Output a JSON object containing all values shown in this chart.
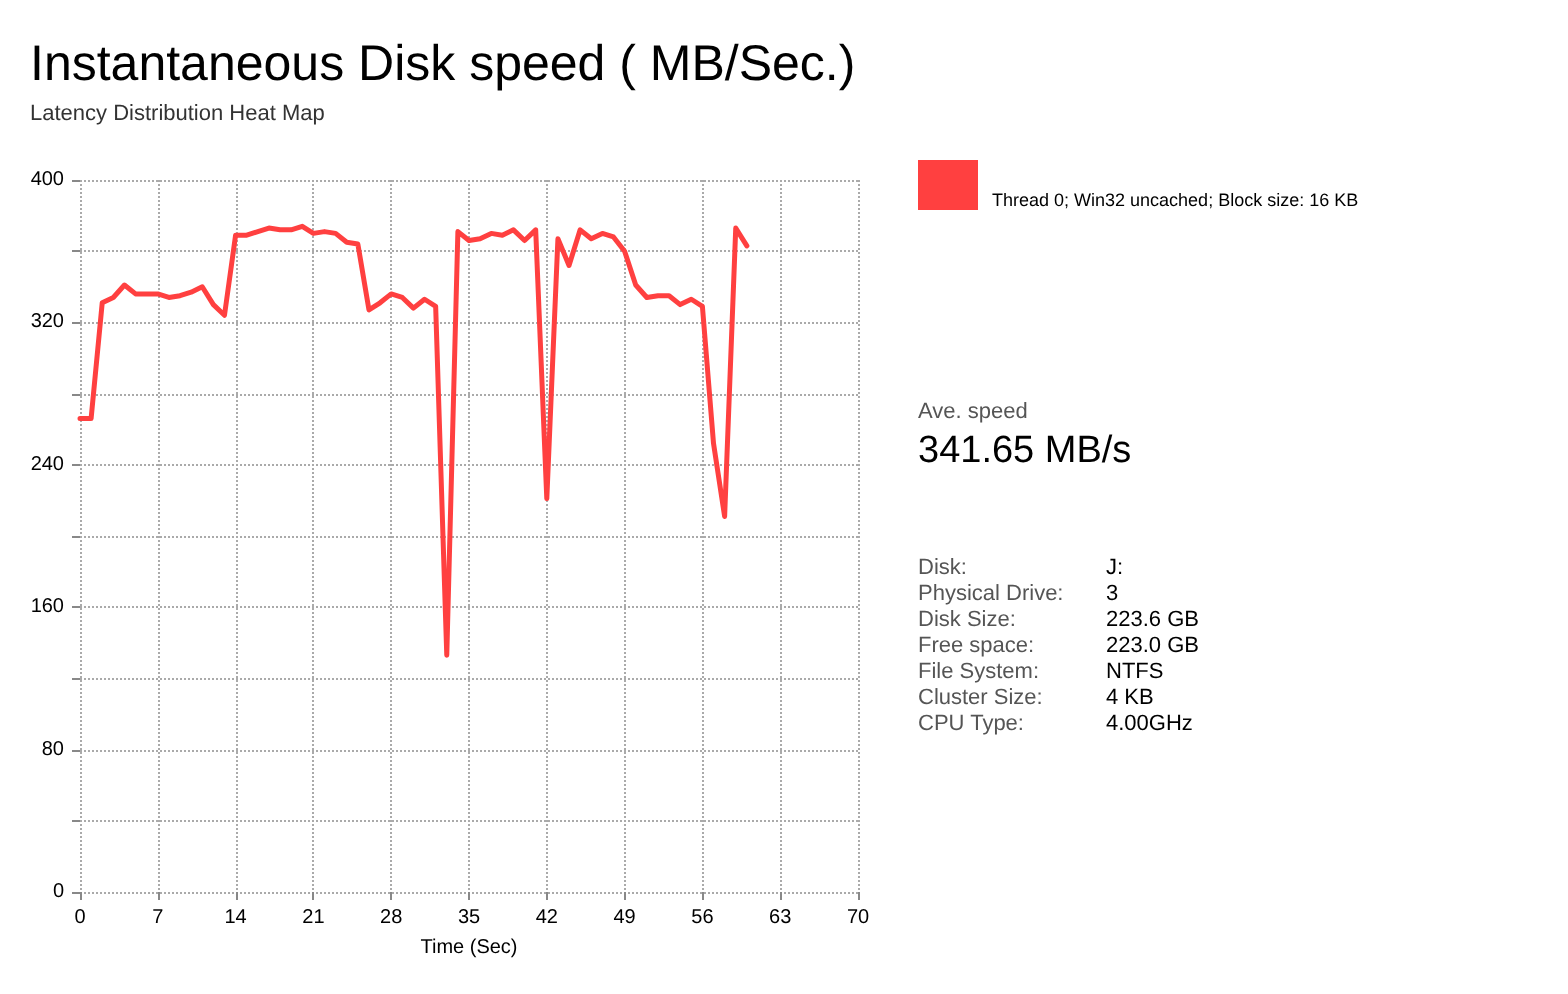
{
  "chart_data": {
    "type": "line",
    "title": "Instantaneous Disk speed ( MB/Sec.)",
    "subtitle": "Latency Distribution Heat Map",
    "xlabel": "Time (Sec)",
    "x": [
      0,
      1,
      2,
      3,
      4,
      5,
      6,
      7,
      8,
      9,
      10,
      11,
      12,
      13,
      14,
      15,
      16,
      17,
      18,
      19,
      20,
      21,
      22,
      23,
      24,
      25,
      26,
      27,
      28,
      29,
      30,
      31,
      32,
      33,
      34,
      35,
      36,
      37,
      38,
      39,
      40,
      41,
      42,
      43,
      44,
      45,
      46,
      47,
      48,
      49,
      50,
      51,
      52,
      53,
      54,
      55,
      56,
      57,
      58,
      59,
      60
    ],
    "series": [
      {
        "color": "#ff4040",
        "values": [
          266,
          266,
          331,
          334,
          341,
          336,
          336,
          336,
          334,
          335,
          337,
          340,
          330,
          324,
          369,
          369,
          371,
          373,
          372,
          372,
          374,
          370,
          371,
          370,
          365,
          364,
          327,
          331,
          336,
          334,
          328,
          333,
          329,
          133,
          371,
          366,
          367,
          370,
          369,
          372,
          366,
          372,
          221,
          367,
          352,
          372,
          367,
          370,
          368,
          360,
          341,
          334,
          335,
          335,
          330,
          333,
          329,
          252,
          211,
          373,
          363
        ]
      }
    ],
    "xlim": [
      0,
      70
    ],
    "xticks": [
      0,
      7,
      14,
      21,
      28,
      35,
      42,
      49,
      56,
      63,
      70
    ],
    "ylim": [
      0,
      400
    ],
    "yticks": [
      0,
      {
        "value": 40,
        "label": null
      },
      80,
      {
        "value": 120,
        "label": null
      },
      160,
      {
        "value": 200,
        "label": null
      },
      240,
      {
        "value": 280,
        "label": null
      },
      320,
      {
        "value": 360,
        "label": null
      },
      400
    ],
    "grid": true,
    "marker": "none",
    "line_style": "solid",
    "annotations": [
      "Thread 0; Win32 uncached; Block size: 16 KB",
      "Ave. speed",
      "341.65 MB/s",
      "Disk:",
      "J:",
      "Physical Drive:",
      "3",
      "Disk Size:",
      "223.6 GB",
      "Free space:",
      "223.0 GB",
      "File System:",
      "NTFS",
      "Cluster Size:",
      "4 KB",
      "CPU Type:",
      "4.00GHz"
    ]
  }
}
